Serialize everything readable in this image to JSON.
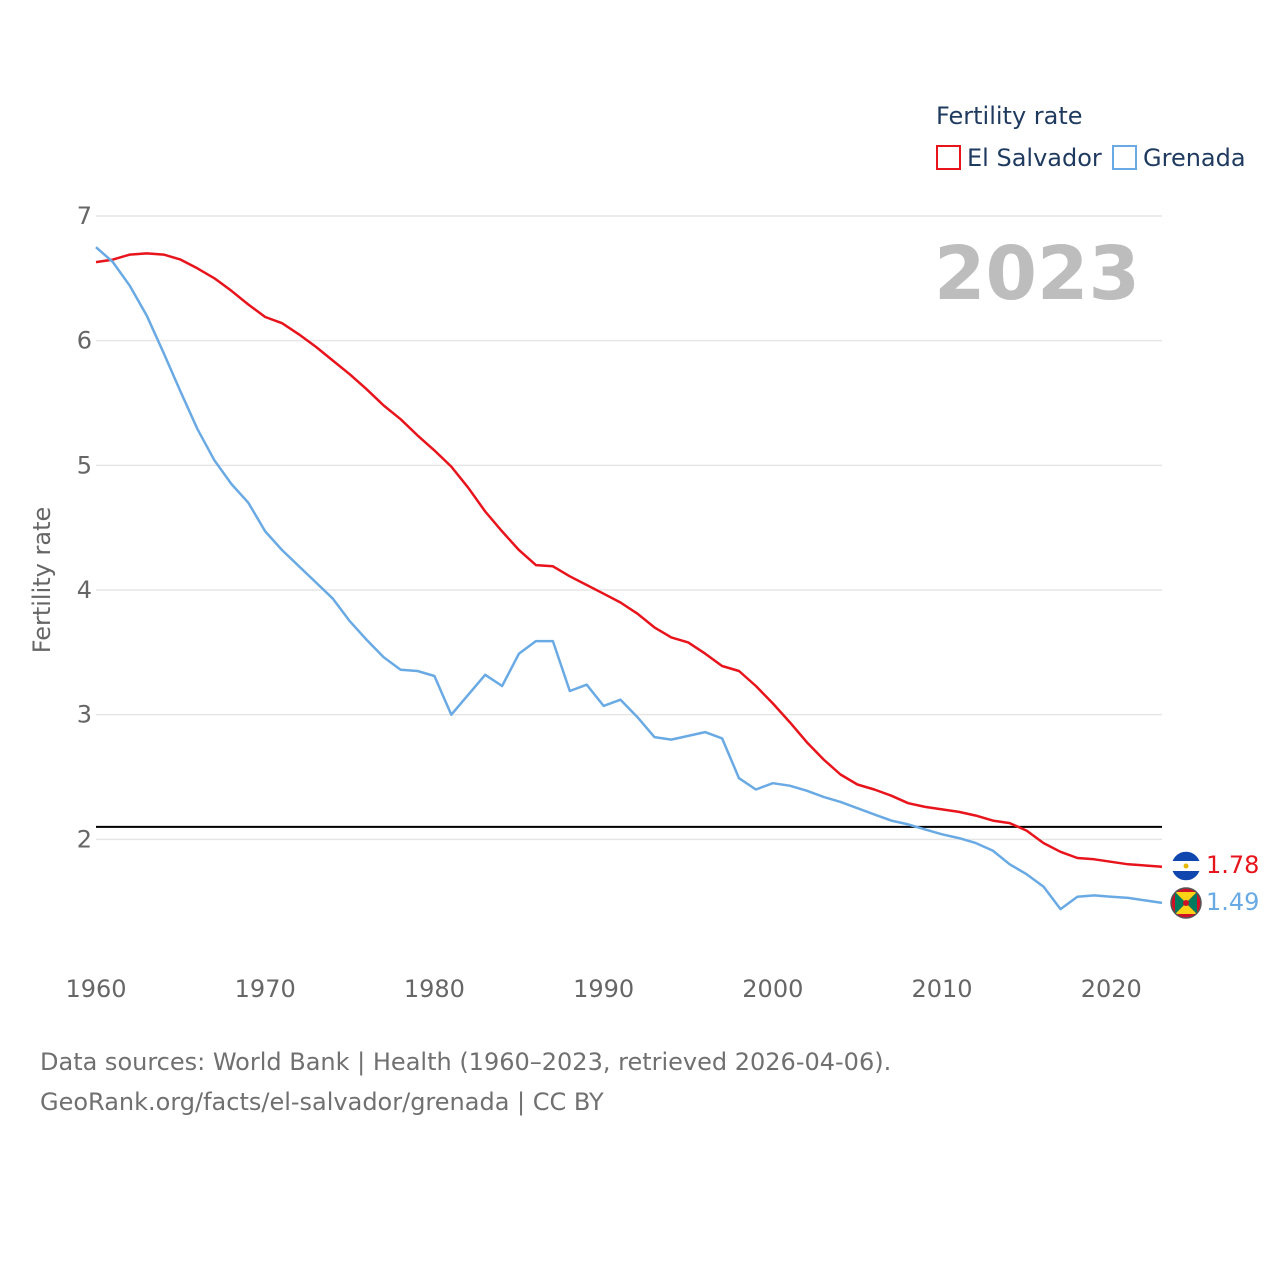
{
  "colors": {
    "el_salvador": "#e8141c",
    "grenada": "#6aaae4",
    "grid": "#e6e6e6",
    "reference": "#000000"
  },
  "chart_data": {
    "type": "line",
    "title": "",
    "legend_title": "Fertility rate",
    "legend_position": "top-right",
    "year_label": "2023",
    "xlabel": "",
    "ylabel": "Fertility rate",
    "xlim": [
      1960,
      2023
    ],
    "ylim": [
      1.0,
      7.0
    ],
    "xticks": [
      1960,
      1970,
      1980,
      1990,
      2000,
      2010,
      2020
    ],
    "yticks": [
      2,
      3,
      4,
      5,
      6,
      7
    ],
    "reference_line": 2.1,
    "x": [
      1960,
      1961,
      1962,
      1963,
      1964,
      1965,
      1966,
      1967,
      1968,
      1969,
      1970,
      1971,
      1972,
      1973,
      1974,
      1975,
      1976,
      1977,
      1978,
      1979,
      1980,
      1981,
      1982,
      1983,
      1984,
      1985,
      1986,
      1987,
      1988,
      1989,
      1990,
      1991,
      1992,
      1993,
      1994,
      1995,
      1996,
      1997,
      1998,
      1999,
      2000,
      2001,
      2002,
      2003,
      2004,
      2005,
      2006,
      2007,
      2008,
      2009,
      2010,
      2011,
      2012,
      2013,
      2014,
      2015,
      2016,
      2017,
      2018,
      2019,
      2020,
      2021,
      2022,
      2023
    ],
    "series": [
      {
        "name": "El Salvador",
        "end_label": "1.78",
        "values": [
          6.63,
          6.65,
          6.69,
          6.7,
          6.69,
          6.65,
          6.58,
          6.5,
          6.4,
          6.29,
          6.19,
          6.14,
          6.05,
          5.95,
          5.84,
          5.73,
          5.61,
          5.48,
          5.37,
          5.24,
          5.12,
          4.99,
          4.82,
          4.63,
          4.47,
          4.32,
          4.2,
          4.19,
          4.11,
          4.04,
          3.97,
          3.9,
          3.81,
          3.7,
          3.62,
          3.58,
          3.49,
          3.39,
          3.35,
          3.23,
          3.09,
          2.94,
          2.78,
          2.64,
          2.52,
          2.44,
          2.4,
          2.35,
          2.29,
          2.26,
          2.24,
          2.22,
          2.19,
          2.15,
          2.13,
          2.07,
          1.97,
          1.9,
          1.85,
          1.84,
          1.82,
          1.8,
          1.79,
          1.78
        ]
      },
      {
        "name": "Grenada",
        "end_label": "1.49",
        "values": [
          6.75,
          6.63,
          6.44,
          6.2,
          5.9,
          5.59,
          5.29,
          5.04,
          4.85,
          4.7,
          4.47,
          4.32,
          4.19,
          4.06,
          3.93,
          3.75,
          3.6,
          3.46,
          3.36,
          3.35,
          3.31,
          3.0,
          3.16,
          3.32,
          3.23,
          3.49,
          3.59,
          3.59,
          3.19,
          3.24,
          3.07,
          3.12,
          2.98,
          2.82,
          2.8,
          2.83,
          2.86,
          2.81,
          2.49,
          2.4,
          2.45,
          2.43,
          2.39,
          2.34,
          2.3,
          2.25,
          2.2,
          2.15,
          2.12,
          2.08,
          2.04,
          2.01,
          1.97,
          1.91,
          1.8,
          1.72,
          1.62,
          1.44,
          1.54,
          1.55,
          1.54,
          1.53,
          1.51,
          1.49
        ]
      }
    ]
  },
  "footer": {
    "line1": "Data sources: World Bank | Health (1960–2023, retrieved 2026-04-06).",
    "line2": "GeoRank.org/facts/el-salvador/grenada | CC BY"
  }
}
